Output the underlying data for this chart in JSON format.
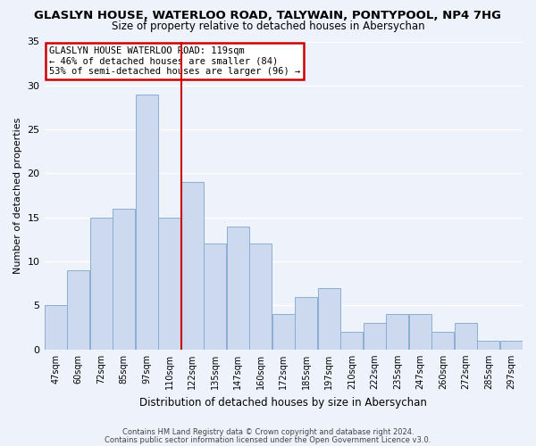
{
  "title": "GLASLYN HOUSE, WATERLOO ROAD, TALYWAIN, PONTYPOOL, NP4 7HG",
  "subtitle": "Size of property relative to detached houses in Abersychan",
  "xlabel": "Distribution of detached houses by size in Abersychan",
  "ylabel": "Number of detached properties",
  "bar_labels": [
    "47sqm",
    "60sqm",
    "72sqm",
    "85sqm",
    "97sqm",
    "110sqm",
    "122sqm",
    "135sqm",
    "147sqm",
    "160sqm",
    "172sqm",
    "185sqm",
    "197sqm",
    "210sqm",
    "222sqm",
    "235sqm",
    "247sqm",
    "260sqm",
    "272sqm",
    "285sqm",
    "297sqm"
  ],
  "bar_values": [
    5,
    9,
    15,
    16,
    29,
    15,
    19,
    12,
    14,
    12,
    4,
    6,
    7,
    2,
    3,
    4,
    4,
    2,
    3,
    1,
    1
  ],
  "bar_color": "#ccd9ef",
  "bar_edgecolor": "#8aafd4",
  "ylim": [
    0,
    35
  ],
  "yticks": [
    0,
    5,
    10,
    15,
    20,
    25,
    30,
    35
  ],
  "annotation_title": "GLASLYN HOUSE WATERLOO ROAD: 119sqm",
  "annotation_line1": "← 46% of detached houses are smaller (84)",
  "annotation_line2": "53% of semi-detached houses are larger (96) →",
  "footer_line1": "Contains HM Land Registry data © Crown copyright and database right 2024.",
  "footer_line2": "Contains public sector information licensed under the Open Government Licence v3.0.",
  "background_color": "#eef3fb",
  "grid_color": "#ffffff",
  "title_fontsize": 9.5,
  "subtitle_fontsize": 8.5,
  "xlabel_fontsize": 8.5,
  "ylabel_fontsize": 8,
  "annotation_box_edgecolor": "#cc0000",
  "ref_line_index": 6
}
